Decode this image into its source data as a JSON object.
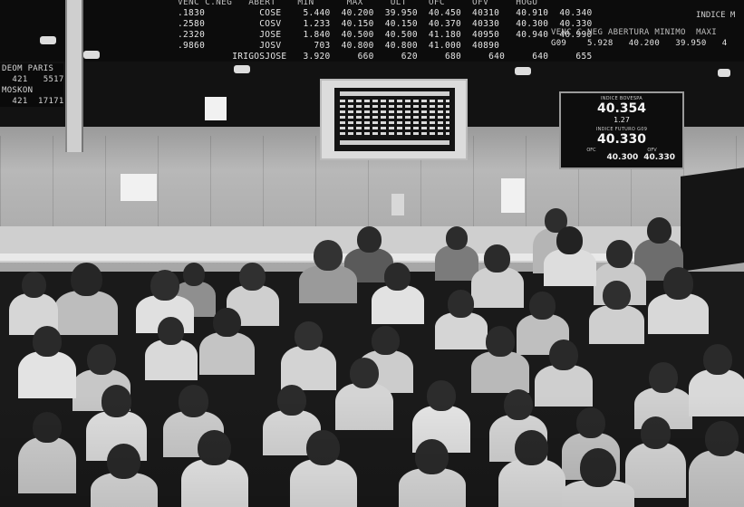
{
  "board": {
    "header": "VENC C.NEG   ABERT    MIN      MAX     ULT    OFC     OFV     HOGU",
    "rows": [
      ".1830          COSE    5.440  40.200  39.950  40.450  40310   40.910  40.340",
      ".2580          COSV    1.233  40.150  40.150  40.370  40330   40.300  40.330",
      ".2320          JOSE    1.840  40.500  40.500  41.180  40950   40.940  40.990",
      ".9860          JOSV      703  40.800  40.800  41.000  40890",
      "          IRIGOSJOSE   3.920     660     620     680     640     640     655"
    ],
    "right_index_label": "INDICE M",
    "right_header": "VENC C.NEG ABERTURA MINIMO  MAXI",
    "right_row": "G09    5.928   40.200   39.950   4"
  },
  "city_board": {
    "rows": [
      "DEOM PARIS",
      "  421   5517",
      "MOSKON",
      "  421  17171"
    ]
  },
  "index_display": {
    "label_top": "INDICE BOVESPA",
    "value_top": "40.354",
    "value_mid_small": "1.27",
    "label_mid": "INDICE FUTURO G09",
    "value_mid": "40.330",
    "label_ofc": "OFC",
    "label_ofv": "OFV",
    "value_ofc": "40.300",
    "value_ofv": "40.330"
  },
  "colors": {
    "board_bg": "#0c0c0c",
    "wall": "#a8a8a8",
    "display_bg": "#0d0d0d"
  }
}
